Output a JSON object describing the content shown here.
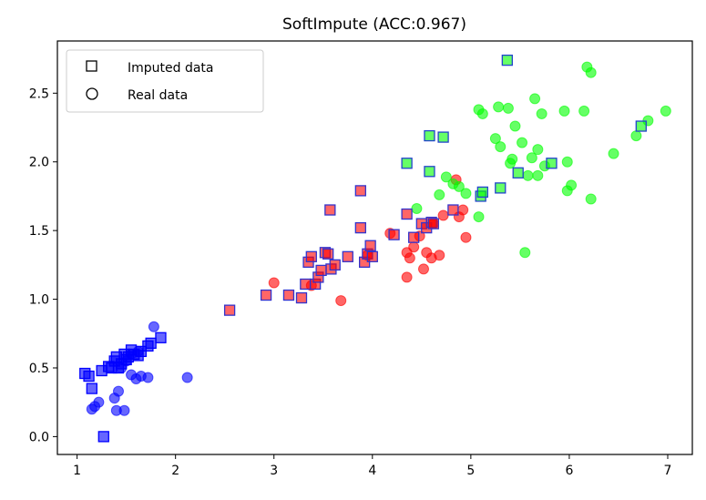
{
  "chart_data": {
    "type": "scatter",
    "title": "SoftImpute (ACC:0.967)",
    "xlabel": "",
    "ylabel": "",
    "xlim": [
      0.8,
      7.25
    ],
    "ylim": [
      -0.13,
      2.88
    ],
    "xticks": [
      1,
      2,
      3,
      4,
      5,
      6,
      7
    ],
    "yticks": [
      0.0,
      0.5,
      1.0,
      1.5,
      2.0,
      2.5
    ],
    "ytick_labels": [
      "0.0",
      "0.5",
      "1.0",
      "1.5",
      "2.0",
      "2.5"
    ],
    "grid": false,
    "legend": {
      "placement": "top-left",
      "entries": [
        {
          "label": "Imputed data",
          "marker": "square"
        },
        {
          "label": "Real data",
          "marker": "circle"
        }
      ]
    },
    "colors": {
      "class_0": "#0000ff",
      "class_1": "#ff0000",
      "class_2": "#00ff00",
      "imputed_edge_0": "#0000ff",
      "imputed_edge_1": "#3333cc",
      "imputed_edge_2": "#2244cc"
    },
    "real": [
      {
        "cls": 0,
        "points": [
          [
            1.15,
            0.2
          ],
          [
            1.18,
            0.22
          ],
          [
            1.22,
            0.25
          ],
          [
            1.38,
            0.28
          ],
          [
            1.42,
            0.33
          ],
          [
            1.4,
            0.19
          ],
          [
            1.48,
            0.19
          ],
          [
            1.55,
            0.45
          ],
          [
            1.6,
            0.42
          ],
          [
            1.65,
            0.44
          ],
          [
            1.72,
            0.43
          ],
          [
            1.78,
            0.8
          ],
          [
            2.12,
            0.43
          ],
          [
            1.5,
            0.55
          ],
          [
            1.45,
            0.5
          ],
          [
            1.55,
            0.6
          ],
          [
            1.62,
            0.62
          ]
        ]
      },
      {
        "cls": 1,
        "points": [
          [
            3.0,
            1.12
          ],
          [
            3.38,
            1.1
          ],
          [
            3.68,
            0.99
          ],
          [
            3.95,
            1.32
          ],
          [
            4.18,
            1.48
          ],
          [
            4.35,
            1.34
          ],
          [
            4.38,
            1.3
          ],
          [
            4.35,
            1.16
          ],
          [
            4.42,
            1.38
          ],
          [
            4.48,
            1.46
          ],
          [
            4.52,
            1.22
          ],
          [
            4.55,
            1.34
          ],
          [
            4.6,
            1.3
          ],
          [
            4.62,
            1.55
          ],
          [
            4.68,
            1.32
          ],
          [
            4.72,
            1.61
          ],
          [
            4.85,
            1.87
          ],
          [
            4.92,
            1.65
          ],
          [
            4.95,
            1.45
          ],
          [
            4.88,
            1.6
          ]
        ]
      },
      {
        "cls": 2,
        "points": [
          [
            4.45,
            1.66
          ],
          [
            4.68,
            1.76
          ],
          [
            4.75,
            1.89
          ],
          [
            4.82,
            1.84
          ],
          [
            4.88,
            1.82
          ],
          [
            4.95,
            1.77
          ],
          [
            5.08,
            2.38
          ],
          [
            5.12,
            2.35
          ],
          [
            5.08,
            1.6
          ],
          [
            5.25,
            2.17
          ],
          [
            5.28,
            2.4
          ],
          [
            5.3,
            2.11
          ],
          [
            5.38,
            2.39
          ],
          [
            5.4,
            1.99
          ],
          [
            5.42,
            2.02
          ],
          [
            5.45,
            2.26
          ],
          [
            5.52,
            2.14
          ],
          [
            5.55,
            1.34
          ],
          [
            5.58,
            1.9
          ],
          [
            5.62,
            2.03
          ],
          [
            5.65,
            2.46
          ],
          [
            5.68,
            2.09
          ],
          [
            5.68,
            1.9
          ],
          [
            5.72,
            2.35
          ],
          [
            5.75,
            1.97
          ],
          [
            5.95,
            2.37
          ],
          [
            5.98,
            2.0
          ],
          [
            5.98,
            1.79
          ],
          [
            6.02,
            1.83
          ],
          [
            6.15,
            2.37
          ],
          [
            6.18,
            2.69
          ],
          [
            6.22,
            2.65
          ],
          [
            6.22,
            1.73
          ],
          [
            6.45,
            2.06
          ],
          [
            6.68,
            2.19
          ],
          [
            6.8,
            2.3
          ],
          [
            6.98,
            2.37
          ]
        ]
      }
    ],
    "imputed": [
      {
        "cls": 0,
        "points": [
          [
            1.08,
            0.46
          ],
          [
            1.12,
            0.44
          ],
          [
            1.15,
            0.35
          ],
          [
            1.25,
            0.48
          ],
          [
            1.27,
            0.0
          ],
          [
            1.32,
            0.51
          ],
          [
            1.35,
            0.5
          ],
          [
            1.38,
            0.55
          ],
          [
            1.4,
            0.58
          ],
          [
            1.42,
            0.5
          ],
          [
            1.45,
            0.53
          ],
          [
            1.48,
            0.6
          ],
          [
            1.5,
            0.56
          ],
          [
            1.52,
            0.58
          ],
          [
            1.55,
            0.63
          ],
          [
            1.58,
            0.6
          ],
          [
            1.62,
            0.59
          ],
          [
            1.65,
            0.62
          ],
          [
            1.72,
            0.66
          ],
          [
            1.75,
            0.68
          ],
          [
            1.85,
            0.72
          ]
        ]
      },
      {
        "cls": 1,
        "points": [
          [
            2.55,
            0.92
          ],
          [
            2.92,
            1.03
          ],
          [
            3.15,
            1.03
          ],
          [
            3.28,
            1.01
          ],
          [
            3.32,
            1.11
          ],
          [
            3.35,
            1.27
          ],
          [
            3.38,
            1.31
          ],
          [
            3.42,
            1.11
          ],
          [
            3.45,
            1.16
          ],
          [
            3.48,
            1.21
          ],
          [
            3.52,
            1.34
          ],
          [
            3.55,
            1.33
          ],
          [
            3.57,
            1.65
          ],
          [
            3.58,
            1.22
          ],
          [
            3.62,
            1.25
          ],
          [
            3.75,
            1.31
          ],
          [
            3.88,
            1.52
          ],
          [
            3.88,
            1.79
          ],
          [
            3.92,
            1.27
          ],
          [
            3.95,
            1.33
          ],
          [
            3.98,
            1.39
          ],
          [
            4.0,
            1.31
          ],
          [
            4.22,
            1.47
          ],
          [
            4.35,
            1.62
          ],
          [
            4.42,
            1.45
          ],
          [
            4.5,
            1.55
          ],
          [
            4.55,
            1.52
          ],
          [
            4.6,
            1.56
          ],
          [
            4.62,
            1.55
          ],
          [
            4.82,
            1.65
          ]
        ]
      },
      {
        "cls": 2,
        "points": [
          [
            4.35,
            1.99
          ],
          [
            4.58,
            2.19
          ],
          [
            4.58,
            1.93
          ],
          [
            4.72,
            2.18
          ],
          [
            5.1,
            1.75
          ],
          [
            5.12,
            1.78
          ],
          [
            5.3,
            1.81
          ],
          [
            5.37,
            2.74
          ],
          [
            5.48,
            1.92
          ],
          [
            5.82,
            1.99
          ],
          [
            6.73,
            2.26
          ]
        ]
      }
    ]
  }
}
